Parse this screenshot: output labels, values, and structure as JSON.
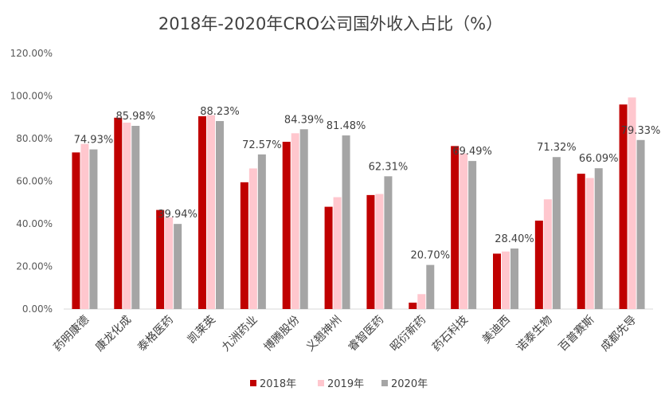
{
  "chart_data": {
    "type": "bar",
    "title": "2018年-2020年CRO公司国外收入占比（%）",
    "xlabel": "",
    "ylabel": "",
    "ylim": [
      0,
      120
    ],
    "yticks": [
      "0.00%",
      "20.00%",
      "40.00%",
      "60.00%",
      "80.00%",
      "100.00%",
      "120.00%"
    ],
    "grid": false,
    "legend_position": "bottom",
    "categories": [
      "药明康德",
      "康龙化成",
      "泰格医药",
      "凯莱英",
      "九洲药业",
      "博腾股份",
      "义翘神州",
      "睿智医药",
      "昭衍新药",
      "药石科技",
      "美迪西",
      "诺泰生物",
      "百普赛斯",
      "成都先导"
    ],
    "series": [
      {
        "name": "2018年",
        "color": "#C00000",
        "values": [
          73.5,
          89.8,
          46.5,
          90.5,
          59.5,
          78.5,
          48.0,
          53.5,
          3.0,
          76.5,
          26.0,
          41.5,
          63.5,
          96.0
        ]
      },
      {
        "name": "2019年",
        "color": "#FFC7CE",
        "values": [
          77.5,
          87.5,
          43.0,
          91.0,
          66.0,
          82.5,
          52.5,
          54.0,
          7.0,
          73.0,
          27.0,
          51.5,
          61.5,
          99.3
        ]
      },
      {
        "name": "2020年",
        "color": "#A5A5A5",
        "values": [
          74.93,
          85.98,
          39.94,
          88.23,
          72.57,
          84.39,
          81.48,
          62.31,
          20.7,
          69.49,
          28.4,
          71.32,
          66.09,
          79.33
        ]
      }
    ],
    "data_labels": [
      "74.93%",
      "85.98%",
      "39.94%",
      "88.23%",
      "72.57%",
      "84.39%",
      "81.48%",
      "62.31%",
      "20.70%",
      "69.49%",
      "28.40%",
      "71.32%",
      "66.09%",
      "79.33%"
    ]
  }
}
